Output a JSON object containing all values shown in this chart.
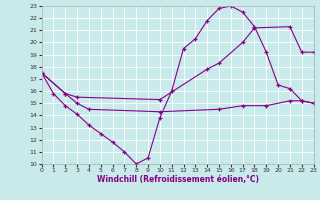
{
  "xlabel": "Windchill (Refroidissement éolien,°C)",
  "background_color": "#c8eaea",
  "line_color": "#880088",
  "xlim": [
    0,
    23
  ],
  "ylim": [
    10,
    23
  ],
  "yticks": [
    10,
    11,
    12,
    13,
    14,
    15,
    16,
    17,
    18,
    19,
    20,
    21,
    22,
    23
  ],
  "xticks": [
    0,
    1,
    2,
    3,
    4,
    5,
    6,
    7,
    8,
    9,
    10,
    11,
    12,
    13,
    14,
    15,
    16,
    17,
    18,
    19,
    20,
    21,
    22,
    23
  ],
  "series1_x": [
    0,
    1,
    2,
    3,
    4,
    5,
    6,
    7,
    8,
    9,
    10,
    11,
    12,
    13,
    14,
    15,
    16,
    17,
    18,
    19,
    20,
    21,
    22,
    23
  ],
  "series1_y": [
    17.5,
    15.8,
    14.8,
    14.1,
    13.2,
    12.5,
    11.8,
    11.0,
    10.0,
    10.5,
    13.8,
    16.0,
    19.5,
    20.3,
    21.8,
    22.8,
    23.0,
    22.5,
    21.3,
    19.2,
    16.5,
    16.2,
    15.2,
    15.0
  ],
  "series2_x": [
    0,
    2,
    3,
    10,
    14,
    15,
    17,
    18,
    21,
    22,
    23
  ],
  "series2_y": [
    17.5,
    15.8,
    15.5,
    15.3,
    17.8,
    18.3,
    20.0,
    21.2,
    21.3,
    19.2,
    19.2
  ],
  "series3_x": [
    0,
    2,
    3,
    4,
    10,
    15,
    17,
    19,
    21,
    22,
    23
  ],
  "series3_y": [
    17.5,
    15.8,
    15.0,
    14.5,
    14.3,
    14.5,
    14.8,
    14.8,
    15.2,
    15.2,
    15.0
  ]
}
